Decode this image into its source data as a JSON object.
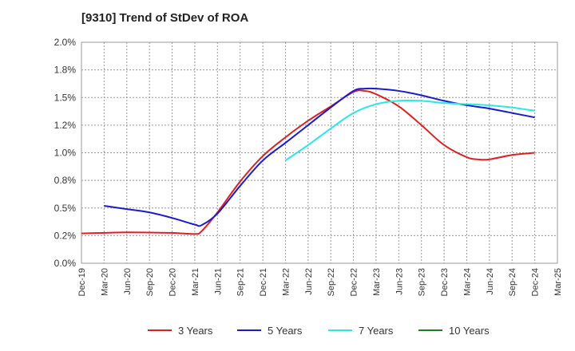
{
  "chart_data": {
    "type": "line",
    "title": "[9310]  Trend of StDev of ROA",
    "xlabel": "",
    "ylabel": "",
    "ylim": [
      0.0,
      2.0
    ],
    "yticks": [
      "0.0%",
      "0.2%",
      "0.5%",
      "0.8%",
      "1.0%",
      "1.2%",
      "1.5%",
      "1.8%",
      "2.0%"
    ],
    "xticks": [
      "Dec-19",
      "Mar-20",
      "Jun-20",
      "Sep-20",
      "Dec-20",
      "Mar-21",
      "Jun-21",
      "Sep-21",
      "Dec-21",
      "Mar-22",
      "Jun-22",
      "Sep-22",
      "Dec-22",
      "Mar-23",
      "Jun-23",
      "Sep-23",
      "Dec-23",
      "Mar-24",
      "Jun-24",
      "Sep-24",
      "Dec-24",
      "Mar-25"
    ],
    "grid": true,
    "legend_position": "bottom",
    "series": [
      {
        "name": "3 Years",
        "color": "#e02020",
        "points": [
          [
            0,
            0.27
          ],
          [
            1,
            0.275
          ],
          [
            2,
            0.28
          ],
          [
            3,
            0.278
          ],
          [
            4,
            0.275
          ],
          [
            5,
            0.265
          ],
          [
            5.3,
            0.29
          ],
          [
            6,
            0.46
          ],
          [
            7,
            0.74
          ],
          [
            8,
            0.97
          ],
          [
            9,
            1.14
          ],
          [
            10,
            1.29
          ],
          [
            11,
            1.42
          ],
          [
            12,
            1.55
          ],
          [
            12.5,
            1.56
          ],
          [
            13,
            1.53
          ],
          [
            14,
            1.42
          ],
          [
            15,
            1.25
          ],
          [
            16,
            1.07
          ],
          [
            17,
            0.96
          ],
          [
            17.5,
            0.94
          ],
          [
            18,
            0.94
          ],
          [
            19,
            0.98
          ],
          [
            20,
            1.0
          ]
        ]
      },
      {
        "name": "5 Years",
        "color": "#1a1ad0",
        "points": [
          [
            1,
            0.52
          ],
          [
            2,
            0.49
          ],
          [
            3,
            0.46
          ],
          [
            4,
            0.41
          ],
          [
            5,
            0.35
          ],
          [
            5.3,
            0.345
          ],
          [
            6,
            0.45
          ],
          [
            7,
            0.7
          ],
          [
            8,
            0.93
          ],
          [
            9,
            1.09
          ],
          [
            10,
            1.25
          ],
          [
            11,
            1.41
          ],
          [
            12,
            1.56
          ],
          [
            12.5,
            1.58
          ],
          [
            13,
            1.58
          ],
          [
            14,
            1.56
          ],
          [
            15,
            1.52
          ],
          [
            16,
            1.47
          ],
          [
            17,
            1.43
          ],
          [
            18,
            1.4
          ],
          [
            19,
            1.36
          ],
          [
            20,
            1.32
          ]
        ]
      },
      {
        "name": "7 Years",
        "color": "#28e8e8",
        "points": [
          [
            9,
            0.93
          ],
          [
            10,
            1.07
          ],
          [
            11,
            1.22
          ],
          [
            12,
            1.36
          ],
          [
            13,
            1.44
          ],
          [
            14,
            1.47
          ],
          [
            15,
            1.47
          ],
          [
            16,
            1.45
          ],
          [
            17,
            1.44
          ],
          [
            18,
            1.43
          ],
          [
            19,
            1.41
          ],
          [
            20,
            1.38
          ]
        ]
      },
      {
        "name": "10 Years",
        "color": "#208020",
        "points": []
      }
    ]
  }
}
